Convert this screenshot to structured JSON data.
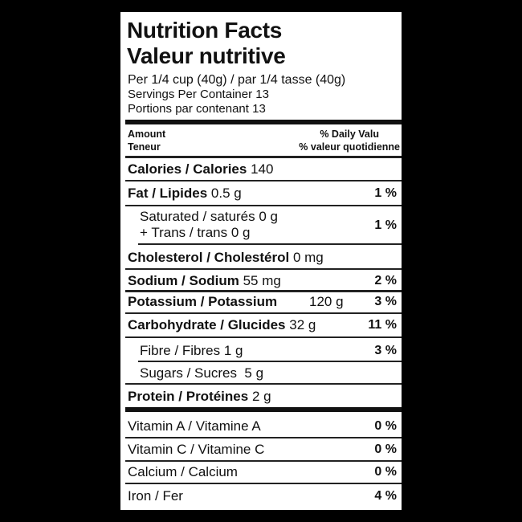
{
  "title_en": "Nutrition Facts",
  "title_fr": "Valeur nutritive",
  "serving": "Per 1/4 cup (40g) / par 1/4 tasse (40g)",
  "servings_en": "Servings Per Container 13",
  "servings_fr": "Portions par contenant 13",
  "header": {
    "amount": "Amount",
    "teneur": "Teneur",
    "dv_en": "% Daily Valu",
    "dv_fr": "% valeur quotidienne"
  },
  "rows": [
    {
      "label": "Calories / Calories",
      "amount": "140",
      "pct": ""
    },
    {
      "label": "Fat / Lipides",
      "amount": "0.5 g",
      "pct": "1 %"
    },
    {
      "label": "Saturated / saturés 0 g",
      "amount": "+ Trans / trans 0 g",
      "pct": "1 %"
    },
    {
      "label": "Cholesterol / Cholestérol",
      "amount": "0 mg",
      "pct": ""
    },
    {
      "label": "Sodium / Sodium",
      "amount": "55 mg",
      "pct": "2 %"
    },
    {
      "label": "Potassium / Potassium",
      "amount": "120 g",
      "pct": "3 %"
    },
    {
      "label": "Carbohydrate / Glucides",
      "amount": "32 g",
      "pct": "11 %"
    },
    {
      "label": "Fibre / Fibres 1 g",
      "amount": "",
      "pct": "3 %"
    },
    {
      "label": "Sugars / Sucres  5 g",
      "amount": "",
      "pct": ""
    },
    {
      "label": "Protein / Protéines",
      "amount": "2 g",
      "pct": ""
    },
    {
      "label": "Vitamin A / Vitamine A",
      "amount": "",
      "pct": "0 %"
    },
    {
      "label": "Vitamin C / Vitamine C",
      "amount": "",
      "pct": "0 %"
    },
    {
      "label": "Calcium / Calcium",
      "amount": "",
      "pct": "0 %"
    },
    {
      "label": "Iron / Fer",
      "amount": "",
      "pct": "4 %"
    }
  ]
}
